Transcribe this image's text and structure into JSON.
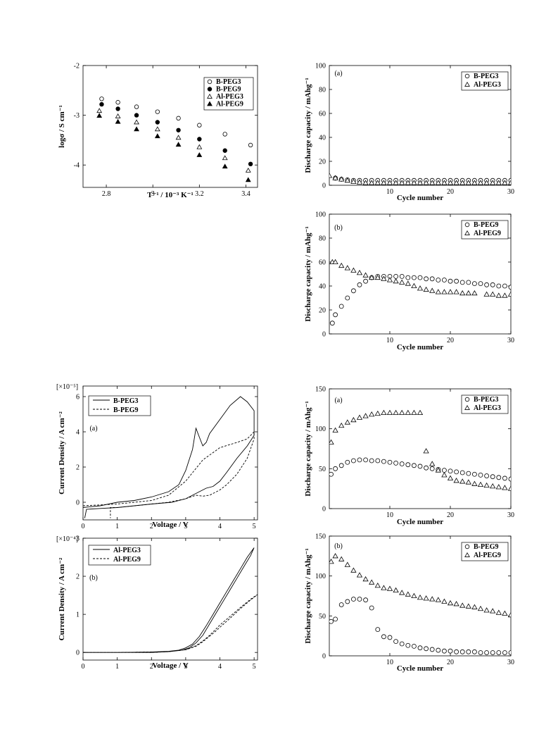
{
  "chart_data": [
    {
      "id": "conductivity",
      "type": "scatter",
      "xlabel": "T⁻¹ / 10⁻³ K⁻¹",
      "ylabel": "logσ  / S cm⁻¹",
      "xlim": [
        2.7,
        3.45
      ],
      "ylim": [
        -4.45,
        -2.0
      ],
      "xticks": [
        2.8,
        3.0,
        3.2,
        3.4
      ],
      "yticks": [
        -2,
        -3,
        -4
      ],
      "xtick_labels": [
        "2.8",
        "3",
        "3.2",
        "3.4"
      ],
      "ytick_labels": [
        "-2",
        "-3",
        "-4"
      ],
      "legend_position": "top-right",
      "series": [
        {
          "name": "B-PEG3",
          "marker": "circle-open",
          "x": [
            2.78,
            2.85,
            2.93,
            3.02,
            3.11,
            3.2,
            3.31,
            3.42
          ],
          "y": [
            -2.67,
            -2.74,
            -2.83,
            -2.93,
            -3.06,
            -3.2,
            -3.38,
            -3.6
          ]
        },
        {
          "name": "B-PEG9",
          "marker": "circle-filled",
          "x": [
            2.78,
            2.85,
            2.93,
            3.02,
            3.11,
            3.2,
            3.31,
            3.42
          ],
          "y": [
            -2.78,
            -2.87,
            -3.0,
            -3.14,
            -3.3,
            -3.48,
            -3.71,
            -3.98
          ]
        },
        {
          "name": "Al-PEG3",
          "marker": "triangle-open",
          "x": [
            2.77,
            2.85,
            2.93,
            3.02,
            3.11,
            3.2,
            3.31,
            3.41
          ],
          "y": [
            -2.91,
            -3.02,
            -3.14,
            -3.28,
            -3.45,
            -3.64,
            -3.86,
            -4.11
          ]
        },
        {
          "name": "Al-PEG9",
          "marker": "triangle-filled",
          "x": [
            2.77,
            2.85,
            2.93,
            3.02,
            3.11,
            3.2,
            3.31,
            3.41
          ],
          "y": [
            -3.01,
            -3.13,
            -3.28,
            -3.42,
            -3.59,
            -3.8,
            -4.03,
            -4.3
          ]
        }
      ]
    },
    {
      "id": "capacity-a-top",
      "type": "scatter",
      "panel_label": "(a)",
      "xlabel": "Cycle number",
      "ylabel": "Discharge capacity / mAhg⁻¹",
      "xlim": [
        0,
        30
      ],
      "ylim": [
        0,
        100
      ],
      "xticks": [
        10,
        20,
        30
      ],
      "yticks": [
        0,
        20,
        40,
        60,
        80,
        100
      ],
      "xtick_labels": [
        "10",
        "20",
        "30"
      ],
      "ytick_labels": [
        "0",
        "20",
        "40",
        "60",
        "80",
        "100"
      ],
      "legend_position": "top-right",
      "series": [
        {
          "name": "B-PEG3",
          "marker": "circle-open",
          "x": [
            1,
            2,
            3,
            4,
            5,
            6,
            7,
            8,
            9,
            10,
            11,
            12,
            13,
            14,
            15,
            16,
            17,
            18,
            19,
            20,
            21,
            22,
            23,
            24,
            25,
            26,
            27,
            28,
            29,
            30
          ],
          "y": [
            6,
            5,
            4.5,
            4,
            4,
            4,
            4,
            4,
            4,
            4,
            4,
            4,
            4,
            4,
            4,
            4,
            4,
            4,
            4,
            4,
            4,
            4,
            4,
            4,
            4,
            4,
            4,
            4,
            4,
            4
          ]
        },
        {
          "name": "Al-PEG3",
          "marker": "triangle-open",
          "x": [
            0,
            1,
            2,
            3,
            4,
            5,
            6,
            7,
            8,
            9,
            10,
            11,
            12,
            13,
            14,
            15,
            16,
            17,
            18,
            19,
            20,
            21,
            22,
            23,
            24,
            25,
            26,
            27,
            28,
            29,
            30
          ],
          "y": [
            8,
            6,
            5,
            4,
            3,
            2.5,
            2,
            2,
            2,
            2,
            2,
            2,
            2,
            2,
            2,
            2,
            2,
            2,
            2,
            2,
            2,
            2,
            2,
            2,
            2,
            2,
            2,
            2,
            2,
            2,
            2
          ]
        }
      ]
    },
    {
      "id": "capacity-b-top",
      "type": "scatter",
      "panel_label": "(b)",
      "xlabel": "Cycle number",
      "ylabel": "Discharge capacity / mAhg⁻¹",
      "xlim": [
        0,
        30
      ],
      "ylim": [
        0,
        100
      ],
      "xticks": [
        10,
        20,
        30
      ],
      "yticks": [
        0,
        20,
        40,
        60,
        80,
        100
      ],
      "xtick_labels": [
        "10",
        "20",
        "30"
      ],
      "ytick_labels": [
        "0",
        "20",
        "40",
        "60",
        "80",
        "100"
      ],
      "legend_position": "top-right",
      "series": [
        {
          "name": "B-PEG9",
          "marker": "circle-open",
          "x": [
            0.5,
            1,
            2,
            3,
            4,
            5,
            6,
            7,
            8,
            9,
            10,
            11,
            12,
            13,
            14,
            15,
            16,
            17,
            18,
            19,
            20,
            21,
            22,
            23,
            24,
            25,
            26,
            27,
            28,
            29,
            30
          ],
          "y": [
            9,
            16,
            23,
            30,
            36,
            41,
            44,
            47,
            48,
            48,
            48,
            48,
            48,
            47,
            47,
            47,
            46,
            46,
            45,
            45,
            44,
            44,
            43,
            43,
            42,
            42,
            41,
            41,
            40,
            40,
            39
          ]
        },
        {
          "name": "Al-PEG9",
          "marker": "triangle-open",
          "x": [
            0.5,
            1,
            2,
            3,
            4,
            5,
            6,
            7,
            8,
            9,
            10,
            11,
            12,
            13,
            14,
            15,
            16,
            17,
            18,
            19,
            20,
            21,
            22,
            23,
            24,
            26,
            27,
            28,
            29,
            30
          ],
          "y": [
            60,
            60,
            57,
            55,
            53,
            51,
            49,
            47,
            47,
            46,
            45,
            44,
            43,
            42,
            40,
            38,
            37,
            36,
            35,
            35,
            35,
            35,
            34,
            34,
            34,
            33,
            33,
            32,
            32,
            33
          ]
        }
      ]
    },
    {
      "id": "lsv-a",
      "type": "line",
      "panel_label": "(a)",
      "multiplier": "[×10⁻⁵]",
      "xlabel": "Voltage / V",
      "ylabel": "Current Density / A cm⁻²",
      "xlim": [
        0,
        5.1
      ],
      "ylim": [
        -1.0,
        6.6
      ],
      "xticks": [
        0,
        1,
        2,
        3,
        4,
        5
      ],
      "yticks": [
        0,
        2,
        4,
        6
      ],
      "xtick_labels": [
        "0",
        "1",
        "2",
        "3",
        "4",
        "5"
      ],
      "ytick_labels": [
        "0",
        "2",
        "4",
        "6"
      ],
      "legend_position": "top-left",
      "series": [
        {
          "name": "B-PEG3",
          "style": "solid",
          "x": [
            0,
            0.5,
            1,
            1.5,
            2,
            2.5,
            2.8,
            3.0,
            3.2,
            3.3,
            3.4,
            3.5,
            3.6,
            3.7,
            4.0,
            4.3,
            4.6,
            4.8,
            5.0,
            5.0,
            4.8,
            4.5,
            4.2,
            4.0,
            3.8,
            3.6,
            3.4,
            3.2,
            3.0,
            2.6,
            2.0,
            1.5,
            1.0,
            0.5,
            0.1,
            0.05
          ],
          "y": [
            -0.3,
            -0.2,
            0,
            0.1,
            0.3,
            0.6,
            1.0,
            1.8,
            3.0,
            4.2,
            3.7,
            3.2,
            3.4,
            3.9,
            4.7,
            5.5,
            6.0,
            5.7,
            5.2,
            3.8,
            3.2,
            2.5,
            1.7,
            1.2,
            0.9,
            0.8,
            0.6,
            0.4,
            0.2,
            0,
            -0.1,
            -0.2,
            -0.3,
            -0.35,
            -0.4,
            -0.9
          ]
        },
        {
          "name": "B-PEG9",
          "style": "dashed",
          "x": [
            0,
            0.5,
            1,
            1.5,
            2,
            2.5,
            3.0,
            3.5,
            4.0,
            4.5,
            4.8,
            5.0,
            5.0,
            4.8,
            4.5,
            4.2,
            4.0,
            3.7,
            3.5,
            3.3,
            3.0,
            2.5,
            2.0,
            1.5,
            1.0,
            0.8,
            0.8
          ],
          "y": [
            -0.2,
            -0.15,
            -0.1,
            0,
            0.1,
            0.4,
            1.2,
            2.4,
            3.1,
            3.4,
            3.6,
            4.0,
            3.6,
            2.5,
            1.6,
            1.0,
            0.7,
            0.4,
            0.35,
            0.4,
            0.2,
            0,
            -0.1,
            -0.2,
            -0.3,
            -0.3,
            -0.9
          ]
        }
      ]
    },
    {
      "id": "lsv-b",
      "type": "line",
      "panel_label": "(b)",
      "multiplier": "[×10⁻⁴]",
      "xlabel": "Voltage / V",
      "ylabel": "Current Density / A cm⁻²",
      "xlim": [
        0,
        5.1
      ],
      "ylim": [
        -0.2,
        3.0
      ],
      "xticks": [
        0,
        1,
        2,
        3,
        4,
        5
      ],
      "yticks": [
        0,
        1,
        2,
        3
      ],
      "xtick_labels": [
        "0",
        "1",
        "2",
        "3",
        "4",
        "5"
      ],
      "ytick_labels": [
        "0",
        "1",
        "2",
        "3"
      ],
      "legend_position": "top-left",
      "series": [
        {
          "name": "Al-PEG3",
          "style": "solid",
          "x": [
            0,
            1,
            2,
            2.5,
            2.8,
            3.0,
            3.2,
            3.4,
            3.6,
            3.8,
            4.0,
            4.2,
            4.4,
            4.6,
            4.8,
            5.0,
            4.9,
            4.7,
            4.5,
            4.3,
            4.1,
            3.9,
            3.7,
            3.5,
            3.3,
            3.1,
            2.9,
            2.5,
            2,
            1,
            0
          ],
          "y": [
            0,
            0,
            0.01,
            0.03,
            0.06,
            0.12,
            0.22,
            0.42,
            0.7,
            1.0,
            1.3,
            1.6,
            1.9,
            2.2,
            2.5,
            2.75,
            2.55,
            2.25,
            1.95,
            1.65,
            1.35,
            1.05,
            0.75,
            0.45,
            0.25,
            0.12,
            0.06,
            0.02,
            0,
            0,
            0
          ]
        },
        {
          "name": "Al-PEG9",
          "style": "dashed",
          "x": [
            0,
            1,
            2,
            2.5,
            3.0,
            3.3,
            3.5,
            3.8,
            4.0,
            4.3,
            4.6,
            4.9,
            5.1,
            4.9,
            4.6,
            4.3,
            4.0,
            3.7,
            3.5,
            3.3,
            3.0,
            2.5,
            2,
            1,
            0
          ],
          "y": [
            0,
            0,
            0.01,
            0.02,
            0.07,
            0.16,
            0.28,
            0.5,
            0.66,
            0.9,
            1.15,
            1.38,
            1.52,
            1.4,
            1.18,
            0.95,
            0.72,
            0.45,
            0.3,
            0.18,
            0.07,
            0.02,
            0,
            0,
            0
          ]
        }
      ]
    },
    {
      "id": "capacity-a-bottom",
      "type": "scatter",
      "panel_label": "(a)",
      "xlabel": "Cycle number",
      "ylabel": "Discharge capacity / mAhg⁻¹",
      "xlim": [
        0,
        30
      ],
      "ylim": [
        0,
        150
      ],
      "xticks": [
        10,
        20,
        30
      ],
      "yticks": [
        0,
        50,
        100,
        150
      ],
      "xtick_labels": [
        "10",
        "20",
        "30"
      ],
      "ytick_labels": [
        "0",
        "50",
        "100",
        "150"
      ],
      "legend_position": "top-right",
      "series": [
        {
          "name": "B-PEG3",
          "marker": "circle-open",
          "x": [
            0.3,
            1,
            2,
            3,
            4,
            5,
            6,
            7,
            8,
            9,
            10,
            11,
            12,
            13,
            14,
            15,
            16,
            17,
            18,
            19,
            20,
            21,
            22,
            23,
            24,
            25,
            26,
            27,
            28,
            29,
            30
          ],
          "y": [
            43,
            50,
            54,
            58,
            60,
            61,
            61,
            60,
            60,
            59,
            58,
            57,
            56,
            55,
            54,
            53,
            51,
            50,
            49,
            48,
            47,
            46,
            45,
            44,
            43,
            42,
            41,
            40,
            39,
            38,
            37
          ]
        },
        {
          "name": "Al-PEG3",
          "marker": "triangle-open",
          "x": [
            0.3,
            1,
            2,
            3,
            4,
            5,
            6,
            7,
            8,
            9,
            10,
            11,
            12,
            13,
            14,
            15,
            16,
            17,
            18,
            19,
            20,
            21,
            22,
            23,
            24,
            25,
            26,
            27,
            28,
            29,
            30
          ],
          "y": [
            83,
            98,
            104,
            108,
            111,
            114,
            116,
            118,
            119,
            120,
            120,
            120,
            120,
            120,
            120,
            120,
            72,
            56,
            48,
            42,
            38,
            35,
            34,
            33,
            31,
            30,
            29,
            28,
            27,
            26,
            25
          ]
        }
      ]
    },
    {
      "id": "capacity-b-bottom",
      "type": "scatter",
      "panel_label": "(b)",
      "xlabel": "Cycle number",
      "ylabel": "Discharge capacity / mAhg⁻¹",
      "xlim": [
        0,
        30
      ],
      "ylim": [
        0,
        150
      ],
      "xticks": [
        10,
        20,
        30
      ],
      "yticks": [
        0,
        50,
        100,
        150
      ],
      "xtick_labels": [
        "10",
        "20",
        "30"
      ],
      "ytick_labels": [
        "0",
        "50",
        "100",
        "150"
      ],
      "legend_position": "top-right",
      "series": [
        {
          "name": "B-PEG9",
          "marker": "circle-open",
          "x": [
            0.3,
            1,
            2,
            3,
            4,
            5,
            6,
            7,
            8,
            9,
            10,
            11,
            12,
            13,
            14,
            15,
            16,
            17,
            18,
            19,
            20,
            21,
            22,
            23,
            24,
            25,
            26,
            27,
            28,
            29,
            30
          ],
          "y": [
            43,
            46,
            64,
            68,
            71,
            71,
            70,
            60,
            33,
            24,
            23,
            18,
            15,
            13,
            12,
            10,
            9,
            8,
            7,
            6,
            6,
            5,
            5,
            5,
            5,
            4,
            4,
            4,
            4,
            4,
            4
          ]
        },
        {
          "name": "Al-PEG9",
          "marker": "triangle-open",
          "x": [
            0.3,
            1,
            2,
            3,
            4,
            5,
            6,
            7,
            8,
            9,
            10,
            11,
            12,
            13,
            14,
            15,
            16,
            17,
            18,
            19,
            20,
            21,
            22,
            23,
            24,
            25,
            26,
            27,
            28,
            29,
            30
          ],
          "y": [
            118,
            125,
            121,
            114,
            107,
            101,
            96,
            92,
            88,
            85,
            84,
            82,
            79,
            77,
            75,
            73,
            72,
            71,
            70,
            68,
            66,
            65,
            63,
            62,
            61,
            59,
            57,
            56,
            54,
            53,
            51
          ]
        }
      ]
    }
  ]
}
